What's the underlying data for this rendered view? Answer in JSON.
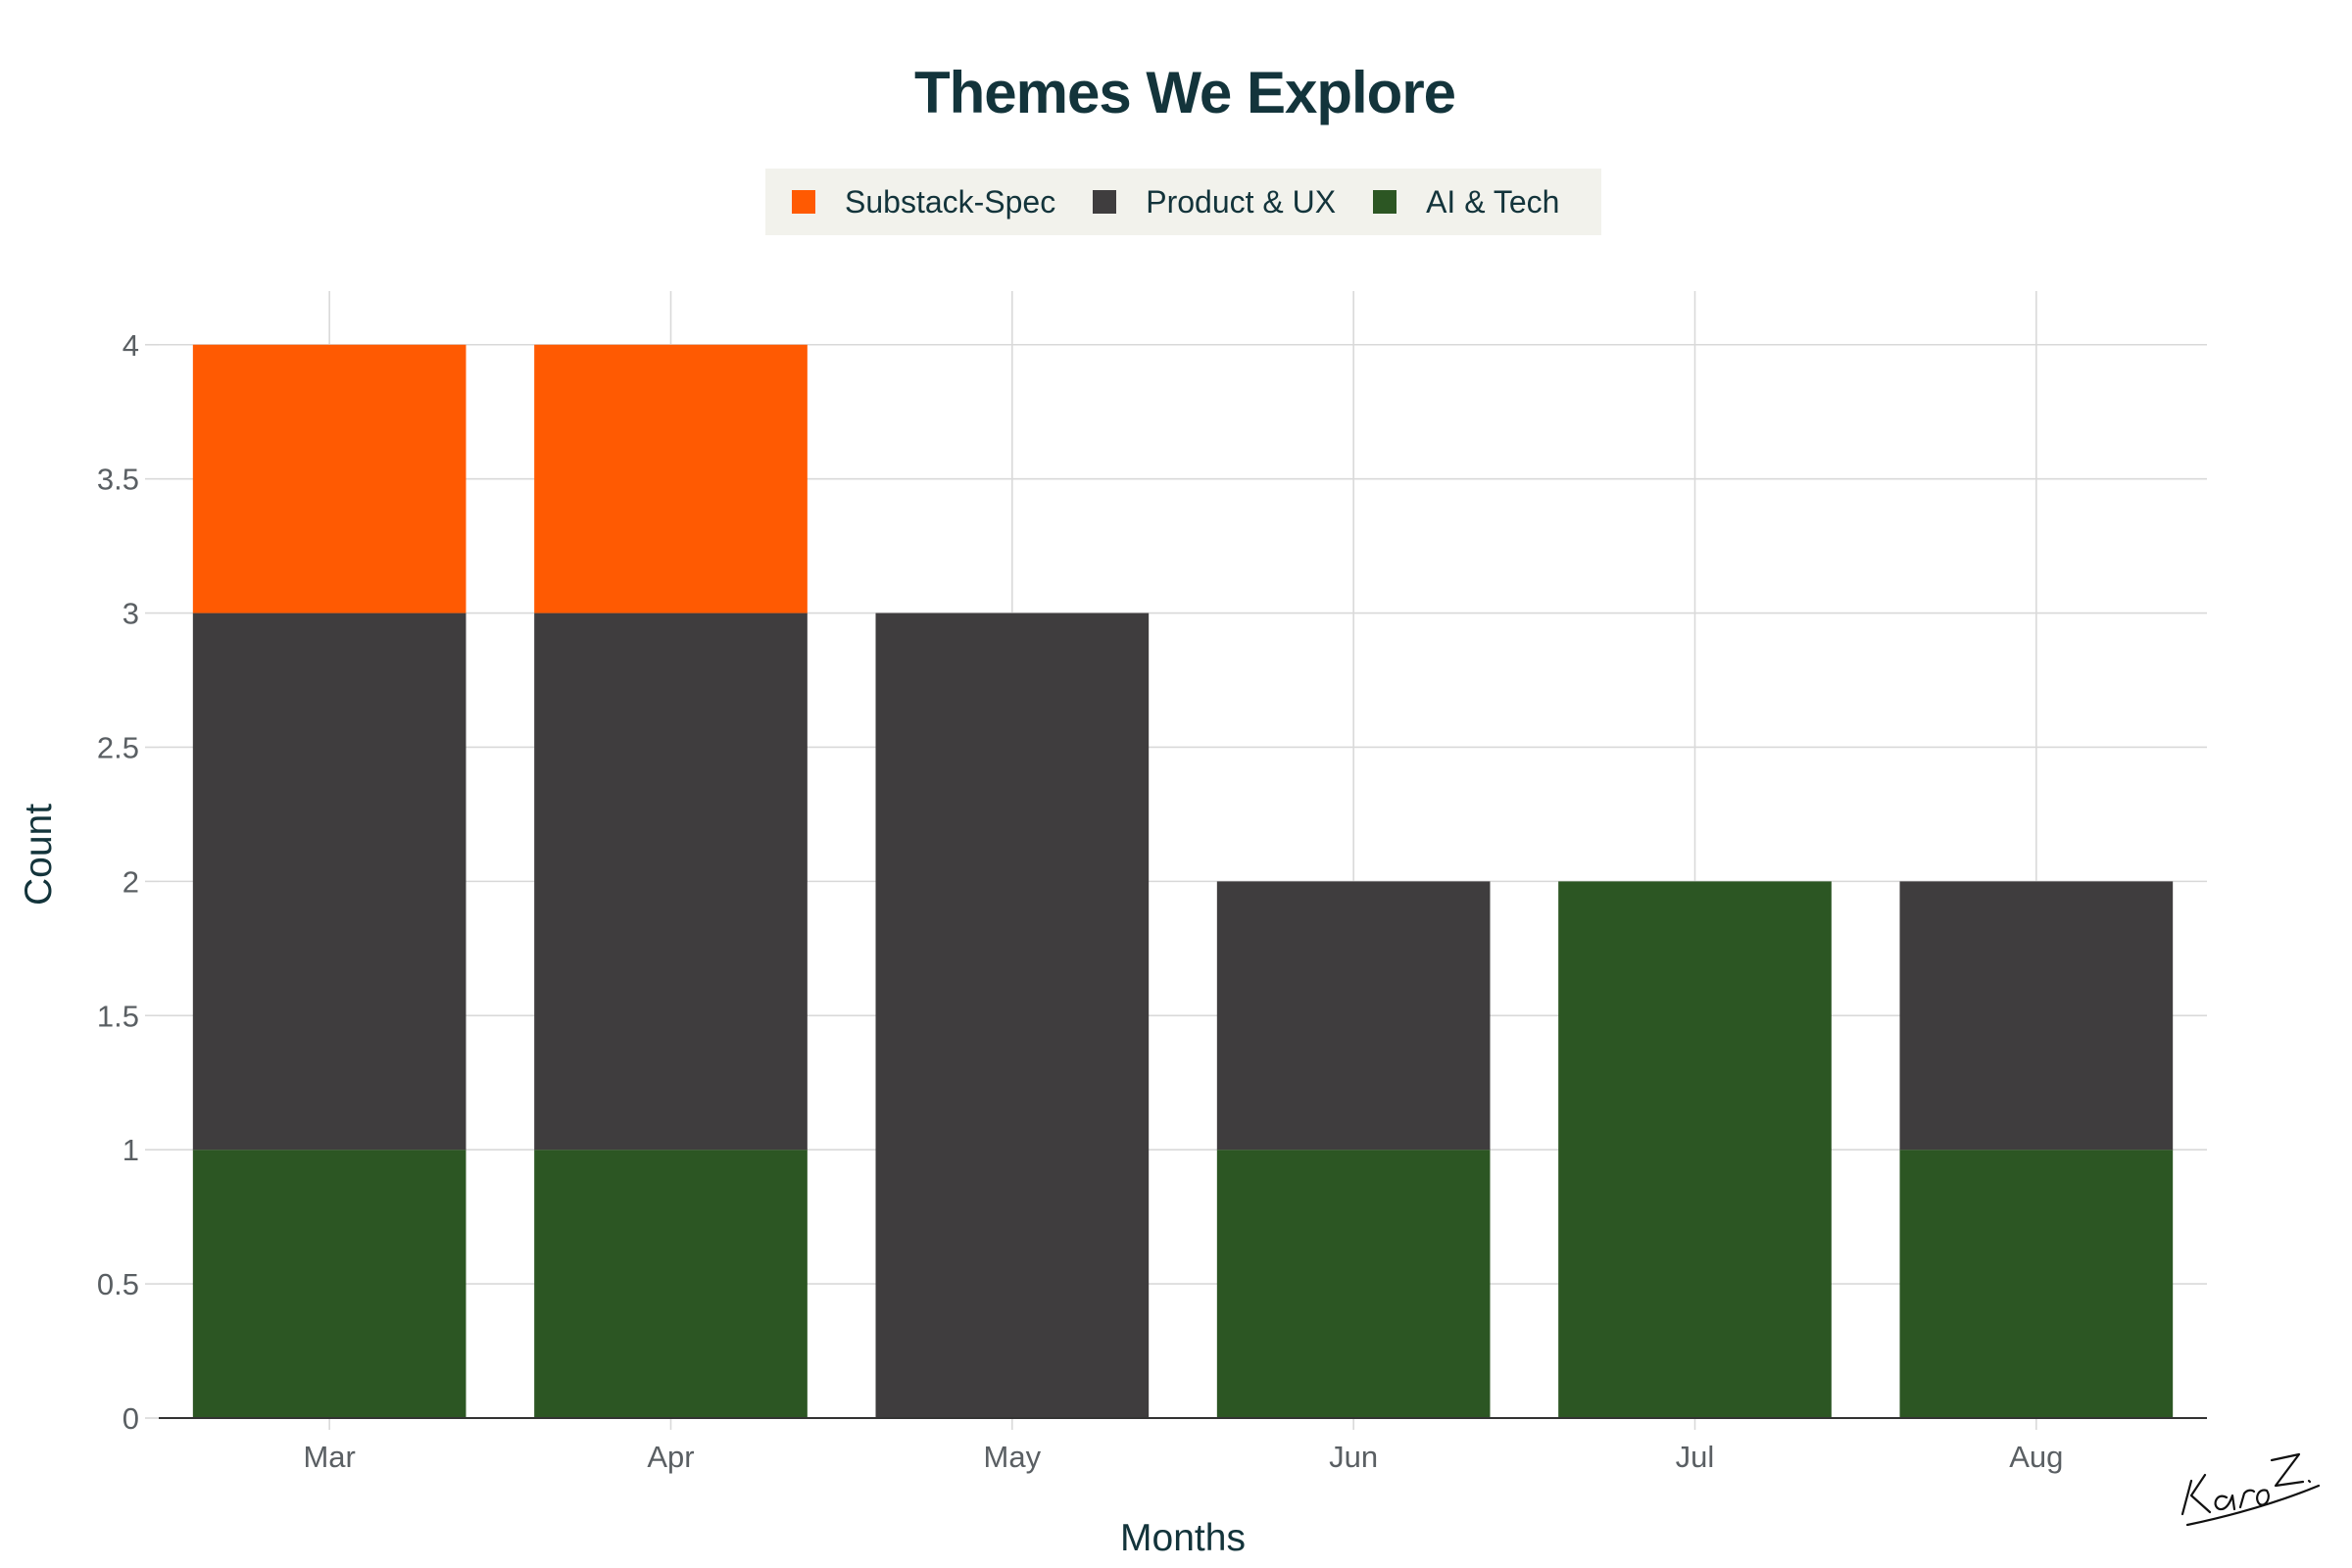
{
  "chart_data": {
    "type": "bar",
    "stacked": true,
    "title": "Themes We Explore",
    "xlabel": "Months",
    "ylabel": "Count",
    "categories": [
      "Mar",
      "Apr",
      "May",
      "Jun",
      "Jul",
      "Aug"
    ],
    "series": [
      {
        "name": "AI & Tech",
        "color": "#2c5623",
        "values": [
          1,
          1,
          0,
          1,
          2,
          1
        ]
      },
      {
        "name": "Product & UX",
        "color": "#3f3d3e",
        "values": [
          2,
          2,
          3,
          1,
          0,
          1
        ]
      },
      {
        "name": "Substack-Spec",
        "color": "#ff5a02",
        "values": [
          1,
          1,
          0,
          0,
          0,
          0
        ]
      }
    ],
    "legend_order": [
      "Substack-Spec",
      "Product & UX",
      "AI & Tech"
    ],
    "legend_position": "top-center",
    "ylim": [
      0,
      4.2
    ],
    "yticks": [
      0,
      0.5,
      1,
      1.5,
      2,
      2.5,
      3,
      3.5,
      4
    ],
    "ytick_labels": [
      "0",
      "0.5",
      "1",
      "1.5",
      "2",
      "2.5",
      "3",
      "3.5",
      "4"
    ],
    "grid": true
  },
  "signature": "Karo Z."
}
